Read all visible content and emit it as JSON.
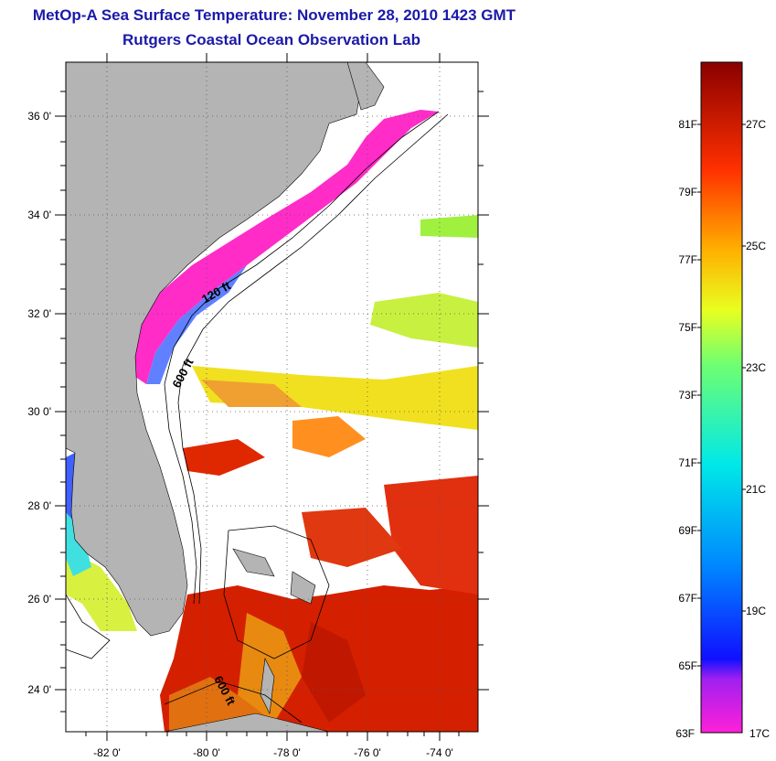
{
  "title": "MetOp-A Sea Surface Temperature:  November 28, 2010 1423 GMT",
  "subtitle": "Rutgers Coastal Ocean Observation Lab",
  "lat_labels": [
    "36 0'",
    "34 0'",
    "32 0'",
    "30 0'",
    "28 0'",
    "26 0'",
    "24 0'"
  ],
  "lon_labels": [
    "-82 0'",
    "-80 0'",
    "-78 0'",
    "-76 0'",
    "-74 0'"
  ],
  "contour_labels": [
    "120 ft",
    "600 ft",
    "600 ft"
  ],
  "colorbar": {
    "f_labels": [
      "81F",
      "79F",
      "77F",
      "75F",
      "73F",
      "71F",
      "69F",
      "67F",
      "65F",
      "63F"
    ],
    "c_labels": [
      "27C",
      "25C",
      "23C",
      "21C",
      "19C",
      "17C"
    ]
  },
  "colors": {
    "land": "#b4b4b4",
    "title": "#1a1aa8",
    "cold": "#ff20c8",
    "warm": "#a80000"
  }
}
